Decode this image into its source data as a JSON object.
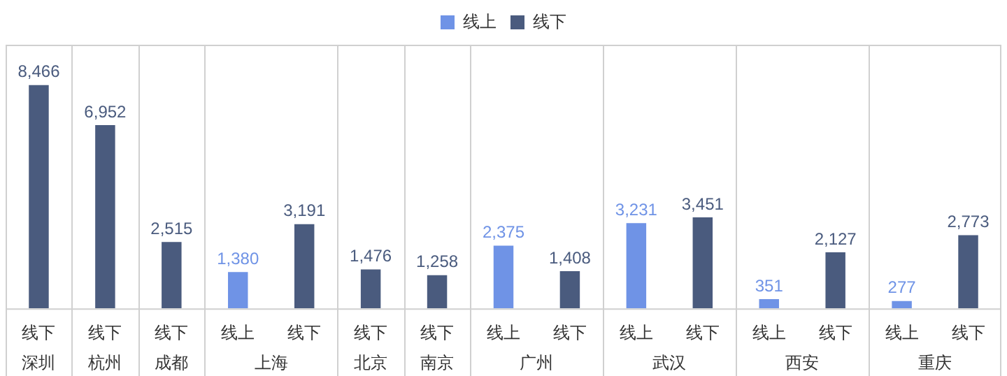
{
  "chart_data": {
    "type": "bar",
    "categories": [
      "线下",
      "线下",
      "线下",
      "线上",
      "线下",
      "线下",
      "线下",
      "线上",
      "线下",
      "线上",
      "线下",
      "线上",
      "线下",
      "线上",
      "线下"
    ],
    "series": [
      {
        "name": "线上",
        "color": "#6f93e6",
        "values": [
          null,
          null,
          null,
          1380,
          null,
          null,
          null,
          2375,
          null,
          3231,
          null,
          351,
          null,
          277,
          null
        ],
        "value_labels": [
          null,
          null,
          null,
          "1,380",
          null,
          null,
          null,
          "2,375",
          null,
          "3,231",
          null,
          "351",
          null,
          "277",
          null
        ]
      },
      {
        "name": "线下",
        "color": "#4a5b7e",
        "values": [
          8466,
          6952,
          2515,
          null,
          3191,
          1476,
          1258,
          null,
          1408,
          null,
          3451,
          null,
          2127,
          null,
          2773
        ],
        "value_labels": [
          "8,466",
          "6,952",
          "2,515",
          null,
          "3,191",
          "1,476",
          "1,258",
          null,
          "1,408",
          null,
          "3,451",
          null,
          "2,127",
          null,
          "2,773"
        ]
      }
    ],
    "annotations": [
      "深圳",
      "杭州",
      "成都",
      "上海",
      "北京",
      "南京",
      "广州",
      "武汉",
      "西安",
      "重庆"
    ],
    "legend": "top"
  }
}
